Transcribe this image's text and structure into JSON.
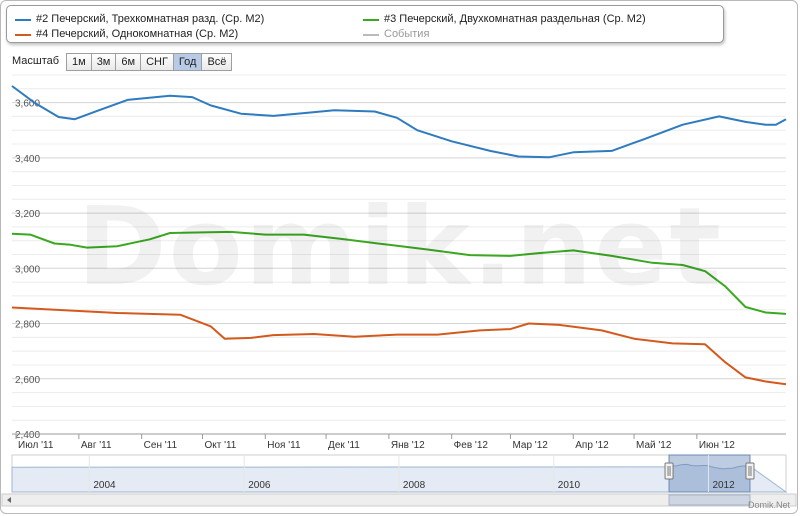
{
  "legend": {
    "items": [
      {
        "label": "#2 Печерский, Трехкомнатная разд. (Ср. М2)",
        "color": "#2f7bbf"
      },
      {
        "label": "#3 Печерский, Двухкомнатная раздельная (Ср. М2)",
        "color": "#3aa820"
      },
      {
        "label": "#4 Печерский, Однокомнатная (Ср. М2)",
        "color": "#d35a1c"
      },
      {
        "label": "События",
        "color": "#bbbbbb"
      }
    ]
  },
  "zoom": {
    "label": "Масштаб",
    "buttons": [
      "1м",
      "3м",
      "6м",
      "СНГ",
      "Год",
      "Всё"
    ],
    "active": "Год"
  },
  "watermark": "Domik.net",
  "credit": "Domik.Net",
  "chart_data": {
    "type": "line",
    "x_ticks": [
      "Июл '11",
      "Авг '11",
      "Сен '11",
      "Окт '11",
      "Ноя '11",
      "Дек '11",
      "Янв '12",
      "Фев '12",
      "Мар '12",
      "Апр '12",
      "Май '12",
      "Июн '12"
    ],
    "y_ticks": [
      "2,400",
      "2,600",
      "2,800",
      "3,000",
      "3,200",
      "3,400",
      "3,600"
    ],
    "ylim": [
      2400,
      3700
    ],
    "grid": true,
    "legend_position": "top",
    "x_range": [
      "2011-06-29",
      "2012-07-15"
    ],
    "series": [
      {
        "name": "#2 Печерский, Трехкомнатная разд. (Ср. М2)",
        "color": "#2f7bbf",
        "points": [
          [
            "2011-06-29",
            3660
          ],
          [
            "2011-07-10",
            3600
          ],
          [
            "2011-07-22",
            3548
          ],
          [
            "2011-07-30",
            3540
          ],
          [
            "2011-08-10",
            3570
          ],
          [
            "2011-08-25",
            3610
          ],
          [
            "2011-09-15",
            3625
          ],
          [
            "2011-09-26",
            3620
          ],
          [
            "2011-10-05",
            3590
          ],
          [
            "2011-10-20",
            3560
          ],
          [
            "2011-11-05",
            3552
          ],
          [
            "2011-11-20",
            3562
          ],
          [
            "2011-12-05",
            3572
          ],
          [
            "2011-12-25",
            3568
          ],
          [
            "2012-01-05",
            3545
          ],
          [
            "2012-01-15",
            3500
          ],
          [
            "2012-02-01",
            3460
          ],
          [
            "2012-02-20",
            3425
          ],
          [
            "2012-03-05",
            3405
          ],
          [
            "2012-03-20",
            3402
          ],
          [
            "2012-04-01",
            3420
          ],
          [
            "2012-04-20",
            3425
          ],
          [
            "2012-05-05",
            3465
          ],
          [
            "2012-05-25",
            3520
          ],
          [
            "2012-06-12",
            3550
          ],
          [
            "2012-06-25",
            3530
          ],
          [
            "2012-07-05",
            3520
          ],
          [
            "2012-07-10",
            3520
          ],
          [
            "2012-07-15",
            3540
          ]
        ]
      },
      {
        "name": "#3 Печерский, Двухкомнатная раздельная (Ср. М2)",
        "color": "#3aa820",
        "points": [
          [
            "2011-06-29",
            3125
          ],
          [
            "2011-07-08",
            3122
          ],
          [
            "2011-07-20",
            3090
          ],
          [
            "2011-07-28",
            3085
          ],
          [
            "2011-08-05",
            3075
          ],
          [
            "2011-08-20",
            3080
          ],
          [
            "2011-09-05",
            3105
          ],
          [
            "2011-09-15",
            3128
          ],
          [
            "2011-10-01",
            3130
          ],
          [
            "2011-10-15",
            3132
          ],
          [
            "2011-11-01",
            3122
          ],
          [
            "2011-11-20",
            3122
          ],
          [
            "2011-12-10",
            3105
          ],
          [
            "2012-01-01",
            3085
          ],
          [
            "2012-01-20",
            3068
          ],
          [
            "2012-02-10",
            3048
          ],
          [
            "2012-03-01",
            3045
          ],
          [
            "2012-03-15",
            3055
          ],
          [
            "2012-04-01",
            3065
          ],
          [
            "2012-04-20",
            3045
          ],
          [
            "2012-05-10",
            3020
          ],
          [
            "2012-05-25",
            3012
          ],
          [
            "2012-06-05",
            2990
          ],
          [
            "2012-06-15",
            2935
          ],
          [
            "2012-06-25",
            2860
          ],
          [
            "2012-07-05",
            2840
          ],
          [
            "2012-07-15",
            2835
          ]
        ]
      },
      {
        "name": "#4 Печерский, Однокомнатная (Ср. М2)",
        "color": "#d35a1c",
        "points": [
          [
            "2011-06-29",
            2858
          ],
          [
            "2011-07-25",
            2848
          ],
          [
            "2011-08-20",
            2838
          ],
          [
            "2011-09-20",
            2832
          ],
          [
            "2011-10-05",
            2790
          ],
          [
            "2011-10-12",
            2745
          ],
          [
            "2011-10-25",
            2748
          ],
          [
            "2011-11-05",
            2758
          ],
          [
            "2011-11-25",
            2762
          ],
          [
            "2011-12-15",
            2752
          ],
          [
            "2012-01-05",
            2760
          ],
          [
            "2012-01-25",
            2760
          ],
          [
            "2012-02-15",
            2775
          ],
          [
            "2012-03-01",
            2780
          ],
          [
            "2012-03-10",
            2800
          ],
          [
            "2012-03-25",
            2795
          ],
          [
            "2012-04-15",
            2775
          ],
          [
            "2012-05-01",
            2745
          ],
          [
            "2012-05-20",
            2728
          ],
          [
            "2012-06-05",
            2725
          ],
          [
            "2012-06-15",
            2660
          ],
          [
            "2012-06-25",
            2605
          ],
          [
            "2012-07-05",
            2590
          ],
          [
            "2012-07-15",
            2580
          ]
        ]
      }
    ],
    "navigator": {
      "x_ticks": [
        "2004",
        "2006",
        "2008",
        "2010",
        "2012"
      ],
      "x_range": [
        "2003-01-01",
        "2013-01-01"
      ],
      "selected_range": [
        "2011-06-29",
        "2012-07-15"
      ]
    }
  }
}
